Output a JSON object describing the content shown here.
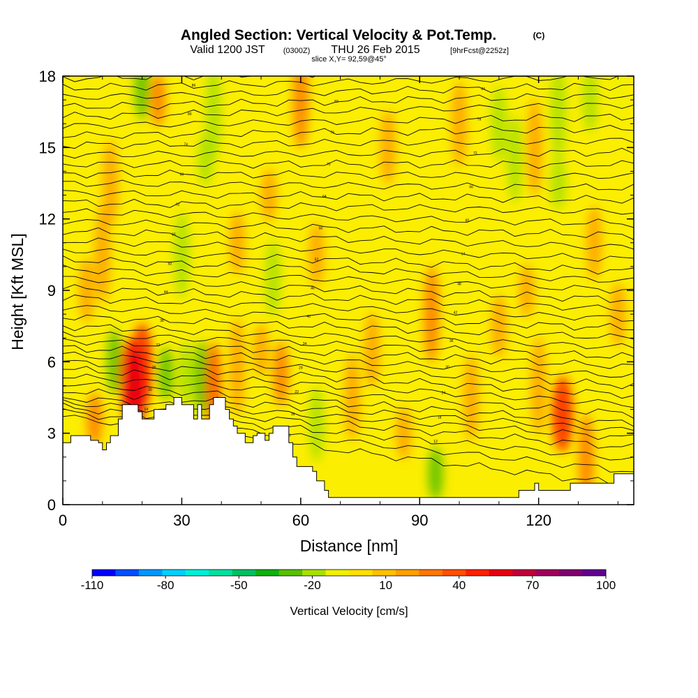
{
  "header": {
    "title_main": "Angled Section: Vertical Velocity & Pot.Temp.",
    "title_unit": "(C)",
    "valid_prefix": "Valid 1200 JST",
    "valid_utc": "(0300Z)",
    "valid_date": "THU 26 Feb 2015",
    "valid_fcst": "[9hrFcst@2252z]",
    "slice_info": "slice X,Y= 92,59@45°"
  },
  "chart_data": {
    "type": "heatmap",
    "xlabel": "Distance [nm]",
    "ylabel": "Height [Kft MSL]",
    "xlim": [
      0,
      144
    ],
    "ylim": [
      0,
      18
    ],
    "x_ticks": [
      "0",
      "30",
      "60",
      "90",
      "120"
    ],
    "x_tick_values": [
      0,
      30,
      60,
      90,
      120
    ],
    "y_ticks": [
      "0",
      "3",
      "6",
      "9",
      "12",
      "15",
      "18"
    ],
    "y_tick_values": [
      0,
      3,
      6,
      9,
      12,
      15,
      18
    ],
    "colorbar": {
      "title": "Vertical Velocity [cm/s]",
      "labels": [
        "-110",
        "-80",
        "-50",
        "-20",
        "10",
        "40",
        "70",
        "100"
      ],
      "label_values": [
        -110,
        -80,
        -50,
        -20,
        10,
        40,
        70,
        100
      ],
      "min": -110,
      "max": 100,
      "colors": [
        "#0000ff",
        "#0050ff",
        "#0098ff",
        "#00d0ff",
        "#00f0d8",
        "#00e0a0",
        "#00c060",
        "#10b010",
        "#58c000",
        "#a8e000",
        "#f0f000",
        "#ffe000",
        "#ffc000",
        "#ffa000",
        "#ff7800",
        "#ff5000",
        "#ff2000",
        "#e80010",
        "#c0003c",
        "#a0005c",
        "#800070",
        "#600090"
      ]
    },
    "background_color": "#fcee00",
    "terrain_profile": [
      [
        0,
        2.6
      ],
      [
        2,
        2.6
      ],
      [
        2,
        2.9
      ],
      [
        7,
        2.9
      ],
      [
        7,
        2.7
      ],
      [
        9,
        2.7
      ],
      [
        9,
        2.6
      ],
      [
        10,
        2.6
      ],
      [
        10,
        2.3
      ],
      [
        11,
        2.3
      ],
      [
        11,
        2.6
      ],
      [
        12,
        2.6
      ],
      [
        12,
        2.9
      ],
      [
        14,
        2.9
      ],
      [
        14,
        3.6
      ],
      [
        15,
        3.6
      ],
      [
        15,
        4.2
      ],
      [
        19,
        4.2
      ],
      [
        19,
        3.9
      ],
      [
        20,
        3.9
      ],
      [
        20,
        3.6
      ],
      [
        23,
        3.6
      ],
      [
        23,
        4.0
      ],
      [
        26,
        4.0
      ],
      [
        26,
        4.2
      ],
      [
        28,
        4.2
      ],
      [
        28,
        4.5
      ],
      [
        30,
        4.5
      ],
      [
        30,
        4.2
      ],
      [
        33,
        4.2
      ],
      [
        33,
        3.6
      ],
      [
        34,
        3.6
      ],
      [
        34,
        4.2
      ],
      [
        35,
        4.2
      ],
      [
        35,
        3.6
      ],
      [
        37,
        3.6
      ],
      [
        37,
        4.2
      ],
      [
        38,
        4.2
      ],
      [
        38,
        4.5
      ],
      [
        41,
        4.5
      ],
      [
        41,
        4.0
      ],
      [
        42,
        4.0
      ],
      [
        42,
        3.6
      ],
      [
        43,
        3.6
      ],
      [
        43,
        3.3
      ],
      [
        44,
        3.3
      ],
      [
        44,
        3.0
      ],
      [
        46,
        3.0
      ],
      [
        46,
        2.6
      ],
      [
        48,
        2.6
      ],
      [
        48,
        2.9
      ],
      [
        49,
        2.9
      ],
      [
        49,
        3.0
      ],
      [
        51,
        3.0
      ],
      [
        51,
        2.7
      ],
      [
        52,
        2.7
      ],
      [
        52,
        3.0
      ],
      [
        53,
        3.0
      ],
      [
        53,
        3.3
      ],
      [
        57,
        3.3
      ],
      [
        57,
        2.6
      ],
      [
        58,
        2.6
      ],
      [
        58,
        2.0
      ],
      [
        59,
        2.0
      ],
      [
        59,
        1.6
      ],
      [
        63,
        1.6
      ],
      [
        63,
        1.4
      ],
      [
        64,
        1.4
      ],
      [
        64,
        1.0
      ],
      [
        66,
        1.0
      ],
      [
        66,
        0.6
      ],
      [
        67,
        0.6
      ],
      [
        67,
        0.3
      ],
      [
        115,
        0.3
      ],
      [
        115,
        0.6
      ],
      [
        119,
        0.6
      ],
      [
        119,
        0.9
      ],
      [
        120,
        0.9
      ],
      [
        120,
        0.6
      ],
      [
        128,
        0.6
      ],
      [
        128,
        0.9
      ],
      [
        139,
        0.9
      ],
      [
        139,
        1.3
      ],
      [
        144,
        1.3
      ]
    ],
    "velocity_cells": [
      {
        "x": 8,
        "y": 3.6,
        "value": 30
      },
      {
        "x": 13,
        "y": 6.0,
        "value": -30
      },
      {
        "x": 17,
        "y": 5.4,
        "value": 50
      },
      {
        "x": 20,
        "y": 5.8,
        "value": 45
      },
      {
        "x": 18,
        "y": 4.6,
        "value": 55
      },
      {
        "x": 26,
        "y": 5.5,
        "value": -25
      },
      {
        "x": 31,
        "y": 5.5,
        "value": -20
      },
      {
        "x": 35,
        "y": 5.3,
        "value": -30
      },
      {
        "x": 38,
        "y": 5.0,
        "value": 35
      },
      {
        "x": 44,
        "y": 5.8,
        "value": 15
      },
      {
        "x": 50,
        "y": 6.5,
        "value": 20
      },
      {
        "x": 55,
        "y": 5.5,
        "value": 25
      },
      {
        "x": 64,
        "y": 3.4,
        "value": -20
      },
      {
        "x": 73,
        "y": 4.5,
        "value": 20
      },
      {
        "x": 93,
        "y": 8.0,
        "value": 25
      },
      {
        "x": 94,
        "y": 1.3,
        "value": -30
      },
      {
        "x": 110,
        "y": 7.5,
        "value": 20
      },
      {
        "x": 126,
        "y": 3.8,
        "value": 45
      },
      {
        "x": 132,
        "y": 2.0,
        "value": 25
      },
      {
        "x": 38,
        "y": 16.5,
        "value": -20
      },
      {
        "x": 36,
        "y": 14.5,
        "value": -15
      },
      {
        "x": 20,
        "y": 17.5,
        "value": -25
      },
      {
        "x": 110,
        "y": 16.0,
        "value": -15
      },
      {
        "x": 114,
        "y": 14.5,
        "value": -15
      },
      {
        "x": 125,
        "y": 16.5,
        "value": -20
      },
      {
        "x": 125,
        "y": 13.5,
        "value": -20
      },
      {
        "x": 133,
        "y": 17.0,
        "value": -15
      },
      {
        "x": 140,
        "y": 17.5,
        "value": -10
      },
      {
        "x": 12,
        "y": 13.5,
        "value": 20
      },
      {
        "x": 10,
        "y": 10.5,
        "value": 20
      },
      {
        "x": 52,
        "y": 13.0,
        "value": 20
      },
      {
        "x": 64,
        "y": 10.5,
        "value": 20
      },
      {
        "x": 82,
        "y": 15.0,
        "value": 15
      },
      {
        "x": 100,
        "y": 16.0,
        "value": 15
      },
      {
        "x": 119,
        "y": 15.0,
        "value": 20
      },
      {
        "x": 117,
        "y": 9.0,
        "value": 20
      },
      {
        "x": 44,
        "y": 11.0,
        "value": 20
      },
      {
        "x": 53,
        "y": 9.5,
        "value": -15
      },
      {
        "x": 30,
        "y": 10.5,
        "value": -15
      },
      {
        "x": 60,
        "y": 17.0,
        "value": 25
      },
      {
        "x": 24,
        "y": 17.0,
        "value": 30
      },
      {
        "x": 6,
        "y": 9.0,
        "value": 15
      },
      {
        "x": 78,
        "y": 6.5,
        "value": 15
      },
      {
        "x": 103,
        "y": 4.5,
        "value": 15
      },
      {
        "x": 120,
        "y": 5.0,
        "value": 15
      },
      {
        "x": 86,
        "y": 3.0,
        "value": 15
      },
      {
        "x": 140,
        "y": 8.0,
        "value": 15
      },
      {
        "x": 134,
        "y": 11.0,
        "value": 15
      }
    ],
    "theta_contours": {
      "start_height": [
        3.7,
        3.9,
        4.1,
        4.3,
        4.5,
        4.8,
        5.1,
        5.4,
        5.7,
        6.0,
        6.3,
        6.6,
        6.9,
        7.2,
        7.5,
        7.9,
        8.3,
        8.7,
        9.1,
        9.5,
        9.9,
        10.3,
        10.7,
        11.1,
        11.5,
        11.9,
        12.3,
        12.7,
        13.1,
        13.5,
        13.9,
        14.3,
        14.7,
        15.1,
        15.5,
        15.9,
        16.3,
        16.7,
        17.1,
        17.5,
        17.9
      ],
      "end_height": [
        0.8,
        1.4,
        1.9,
        2.4,
        2.8,
        3.1,
        3.4,
        3.8,
        4.2,
        4.6,
        5.0,
        5.4,
        5.8,
        6.2,
        6.6,
        7.0,
        7.4,
        7.8,
        8.2,
        8.6,
        9.0,
        9.4,
        9.8,
        10.3,
        10.8,
        11.3,
        11.8,
        12.3,
        12.8,
        13.3,
        13.8,
        14.3,
        14.8,
        15.3,
        15.8,
        16.3,
        16.8,
        17.2,
        17.6,
        18.0,
        18.4
      ],
      "labels": [
        "8",
        "10",
        "12",
        "14",
        "16",
        "18",
        "20",
        "22",
        "24",
        "26",
        "28",
        "30",
        "32",
        "34",
        "36",
        "38",
        "40",
        "42",
        "44",
        "46",
        "48",
        "50",
        "52",
        "54",
        "56",
        "58",
        "60",
        "62",
        "64",
        "66",
        "68",
        "70",
        "72",
        "74",
        "76",
        "78",
        "80",
        "82",
        "84",
        "86",
        "88"
      ],
      "color": "#000000"
    }
  }
}
